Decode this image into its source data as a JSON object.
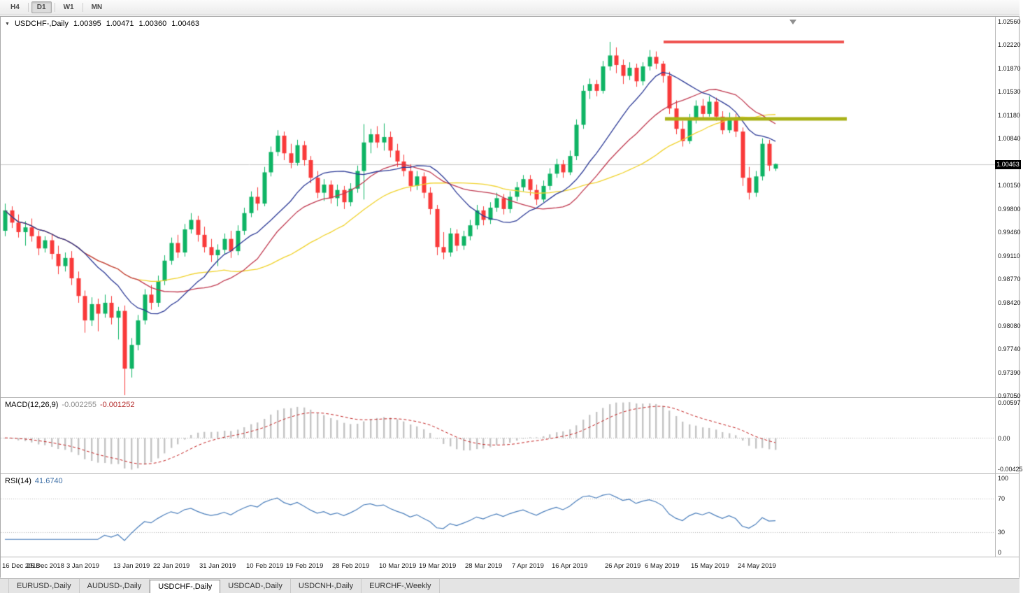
{
  "toolbar": {
    "timeframes": [
      {
        "label": "H4",
        "active": false
      },
      {
        "label": "D1",
        "active": true
      },
      {
        "label": "W1",
        "active": false
      },
      {
        "label": "MN",
        "active": false
      }
    ]
  },
  "chart": {
    "symbol_line": {
      "marker": "▼",
      "title": "USDCHF-,Daily",
      "open": "1.00395",
      "high": "1.00471",
      "low": "1.00360",
      "close": "1.00463"
    },
    "scale": {
      "pmax": 1.0263,
      "pmin": 0.9703
    },
    "price_axis": {
      "ticks": [
        {
          "label": "1.02560",
          "value": 1.0256
        },
        {
          "label": "1.02220",
          "value": 1.0222
        },
        {
          "label": "1.01870",
          "value": 1.0187
        },
        {
          "label": "1.01530",
          "value": 1.0153
        },
        {
          "label": "1.01180",
          "value": 1.0118
        },
        {
          "label": "1.00840",
          "value": 1.0084
        },
        {
          "label": "1.00150",
          "value": 1.0015
        },
        {
          "label": "0.99800",
          "value": 0.998
        },
        {
          "label": "0.99460",
          "value": 0.9946
        },
        {
          "label": "0.99110",
          "value": 0.9911
        },
        {
          "label": "0.98770",
          "value": 0.9877
        },
        {
          "label": "0.98420",
          "value": 0.9842
        },
        {
          "label": "0.98080",
          "value": 0.9808
        },
        {
          "label": "0.97740",
          "value": 0.9774
        },
        {
          "label": "0.97390",
          "value": 0.9739
        },
        {
          "label": "0.97050",
          "value": 0.9705
        }
      ],
      "current": {
        "label": "1.00463",
        "value": 1.00463
      }
    }
  },
  "colors": {
    "candle_up": "#0eb464",
    "candle_down": "#f93a3a",
    "current_price_line": "#c9c9c9",
    "price_tag_bg": "#000000",
    "price_tag_text": "#ffffff",
    "panel_border": "#b8b8b8"
  },
  "macd": {
    "label": "MACD(12,26,9)",
    "value_main": "-0.002255",
    "value_signal": "-0.001252",
    "axis_labels": [
      "0.00597",
      "0.00",
      "-0.00425"
    ]
  },
  "rsi": {
    "label": "RSI(14)",
    "value": "41.6740",
    "axis_labels": [
      "100",
      "70",
      "30",
      "0"
    ]
  },
  "date_axis": {
    "labels": [
      {
        "text": "16 Dec 2018",
        "bar": 0
      },
      {
        "text": "25 Dec 2018",
        "bar": 6
      },
      {
        "text": "3 Jan 2019",
        "bar": 12
      },
      {
        "text": "13 Jan 2019",
        "bar": 19
      },
      {
        "text": "22 Jan 2019",
        "bar": 25
      },
      {
        "text": "31 Jan 2019",
        "bar": 32
      },
      {
        "text": "10 Feb 2019",
        "bar": 39
      },
      {
        "text": "19 Feb 2019",
        "bar": 45
      },
      {
        "text": "28 Feb 2019",
        "bar": 52
      },
      {
        "text": "10 Mar 2019",
        "bar": 59
      },
      {
        "text": "19 Mar 2019",
        "bar": 65
      },
      {
        "text": "28 Mar 2019",
        "bar": 72
      },
      {
        "text": "7 Apr 2019",
        "bar": 79
      },
      {
        "text": "16 Apr 2019",
        "bar": 85
      },
      {
        "text": "26 Apr 2019",
        "bar": 93
      },
      {
        "text": "6 May 2019",
        "bar": 99
      },
      {
        "text": "15 May 2019",
        "bar": 106
      },
      {
        "text": "24 May 2019",
        "bar": 113
      }
    ]
  },
  "tabs": [
    {
      "label": "EURUSD-,Daily",
      "active": false
    },
    {
      "label": "AUDUSD-,Daily",
      "active": false
    },
    {
      "label": "USDCHF-,Daily",
      "active": true
    },
    {
      "label": "USDCAD-,Daily",
      "active": false
    },
    {
      "label": "USDCNH-,Daily",
      "active": false
    },
    {
      "label": "EURCHF-,Weekly",
      "active": false
    }
  ],
  "chart_data": {
    "type": "candlestick",
    "symbol": "USDCHF-",
    "timeframe": "Daily",
    "ylim": [
      0.9703,
      1.0263
    ],
    "open": [
      0.9948,
      0.9978,
      0.996,
      0.9946,
      0.9953,
      0.994,
      0.9922,
      0.9934,
      0.9914,
      0.9896,
      0.9908,
      0.9878,
      0.9852,
      0.9816,
      0.984,
      0.9826,
      0.9842,
      0.982,
      0.983,
      0.9745,
      0.978,
      0.9816,
      0.9854,
      0.9842,
      0.9874,
      0.9904,
      0.993,
      0.9916,
      0.995,
      0.9964,
      0.9942,
      0.9924,
      0.9912,
      0.992,
      0.9936,
      0.9918,
      0.9948,
      0.9974,
      0.9998,
      0.9988,
      1.0034,
      1.0064,
      1.0088,
      1.0062,
      1.0048,
      1.0074,
      1.0052,
      1.0026,
      1.0004,
      1.0016,
      0.9996,
      1.0008,
      0.999,
      1.001,
      1.0036,
      1.0078,
      1.009,
      1.0078,
      1.0086,
      1.0066,
      1.005,
      1.0036,
      1.0014,
      1.0028,
      1.0004,
      0.998,
      0.9924,
      0.9916,
      0.9944,
      0.9926,
      0.994,
      0.9956,
      0.9978,
      0.9964,
      0.9982,
      0.9996,
      0.998,
      0.9998,
      1.0012,
      1.0024,
      1.0008,
      0.9994,
      1.0014,
      1.0032,
      1.0046,
      1.0034,
      1.0058,
      1.0104,
      1.0154,
      1.0164,
      1.0154,
      1.019,
      1.0206,
      1.0192,
      1.0176,
      1.0188,
      1.0168,
      1.019,
      1.0204,
      1.0194,
      1.0176,
      1.0128,
      1.0098,
      1.008,
      1.0112,
      1.0132,
      1.012,
      1.0138,
      1.0116,
      1.0096,
      1.0114,
      1.0094,
      1.0026,
      1.0004,
      1.0028,
      1.0076,
      1.00395
    ],
    "high": [
      0.9988,
      0.9984,
      0.9972,
      0.9962,
      0.9966,
      0.9948,
      0.994,
      0.9944,
      0.9926,
      0.9916,
      0.9918,
      0.9888,
      0.986,
      0.985,
      0.9848,
      0.9854,
      0.9852,
      0.9836,
      0.9838,
      0.979,
      0.9824,
      0.9862,
      0.9868,
      0.9882,
      0.9912,
      0.9938,
      0.9942,
      0.9958,
      0.9974,
      0.997,
      0.9954,
      0.9936,
      0.9928,
      0.9944,
      0.9948,
      0.9956,
      0.9982,
      1.0006,
      1.0012,
      1.0042,
      1.0072,
      1.0096,
      1.0094,
      1.0076,
      1.0082,
      1.008,
      1.0058,
      1.0036,
      1.0024,
      1.0022,
      1.0016,
      1.0014,
      1.0018,
      1.0044,
      1.0105,
      1.0098,
      1.0102,
      1.0106,
      1.0094,
      1.0076,
      1.006,
      1.0046,
      1.0036,
      1.0034,
      1.0012,
      0.9986,
      0.9946,
      0.9952,
      0.995,
      0.9948,
      0.9964,
      0.9986,
      0.9984,
      0.999,
      1.0004,
      1.0002,
      1.0006,
      1.002,
      1.003,
      1.003,
      1.0016,
      1.0022,
      1.004,
      1.0054,
      1.0052,
      1.0066,
      1.0112,
      1.0162,
      1.0172,
      1.017,
      1.0198,
      1.0226,
      1.0218,
      1.02,
      1.0196,
      1.0194,
      1.0196,
      1.0214,
      1.0212,
      1.0198,
      1.0182,
      1.014,
      1.011,
      1.012,
      1.014,
      1.0142,
      1.0146,
      1.0144,
      1.0124,
      1.0122,
      1.012,
      1.01,
      1.0042,
      1.0036,
      1.0084,
      1.0082,
      1.00471
    ],
    "low": [
      0.994,
      0.9952,
      0.9938,
      0.9926,
      0.9932,
      0.9912,
      0.9916,
      0.9906,
      0.9884,
      0.9888,
      0.9868,
      0.9842,
      0.9798,
      0.9808,
      0.98,
      0.982,
      0.981,
      0.9788,
      0.9706,
      0.9732,
      0.9772,
      0.981,
      0.9832,
      0.9836,
      0.9868,
      0.9898,
      0.9908,
      0.991,
      0.9944,
      0.9932,
      0.9916,
      0.9902,
      0.9896,
      0.9914,
      0.9908,
      0.9912,
      0.9942,
      0.9968,
      0.9978,
      0.9984,
      1.0028,
      1.0058,
      1.0052,
      1.004,
      1.0044,
      1.0044,
      1.0018,
      0.9996,
      0.9992,
      0.9988,
      0.9984,
      0.998,
      0.9984,
      1.0004,
      0.9994,
      1.0062,
      1.007,
      1.0066,
      1.0056,
      1.0042,
      1.0028,
      1.0006,
      1.0008,
      0.9996,
      0.9972,
      0.9912,
      0.9906,
      0.991,
      0.9918,
      0.992,
      0.9934,
      0.995,
      0.9956,
      0.9958,
      0.9976,
      0.9972,
      0.9974,
      0.9992,
      1.0006,
      1.0,
      0.9986,
      0.999,
      1.0008,
      1.0026,
      1.0026,
      1.003,
      1.0052,
      1.0098,
      1.0142,
      1.0146,
      1.015,
      1.0184,
      1.018,
      1.0164,
      1.017,
      1.016,
      1.0162,
      1.0184,
      1.0186,
      1.0166,
      1.012,
      1.009,
      1.0072,
      1.0076,
      1.0106,
      1.0112,
      1.0116,
      1.011,
      1.009,
      1.0092,
      1.0086,
      1.0014,
      0.9994,
      0.9998,
      1.0022,
      1.0036,
      1.0036
    ],
    "close": [
      0.9978,
      0.996,
      0.9946,
      0.9953,
      0.994,
      0.9922,
      0.9934,
      0.9914,
      0.9896,
      0.9908,
      0.9878,
      0.9852,
      0.9816,
      0.984,
      0.9826,
      0.9842,
      0.982,
      0.983,
      0.9745,
      0.978,
      0.9816,
      0.9854,
      0.9842,
      0.9874,
      0.9904,
      0.993,
      0.9916,
      0.995,
      0.9964,
      0.9942,
      0.9924,
      0.9912,
      0.992,
      0.9936,
      0.9918,
      0.9948,
      0.9974,
      0.9998,
      0.9988,
      1.0034,
      1.0064,
      1.0088,
      1.0062,
      1.0048,
      1.0074,
      1.0052,
      1.0026,
      1.0004,
      1.0016,
      0.9996,
      1.0008,
      0.999,
      1.001,
      1.0036,
      1.0078,
      1.009,
      1.0078,
      1.0086,
      1.0066,
      1.005,
      1.0036,
      1.0014,
      1.0028,
      1.0004,
      0.998,
      0.9924,
      0.9916,
      0.9944,
      0.9926,
      0.994,
      0.9956,
      0.9978,
      0.9964,
      0.9982,
      0.9996,
      0.998,
      0.9998,
      1.0012,
      1.0024,
      1.0008,
      0.9994,
      1.0014,
      1.0032,
      1.0046,
      1.0034,
      1.0058,
      1.0104,
      1.0154,
      1.0164,
      1.0154,
      1.019,
      1.0206,
      1.0192,
      1.0176,
      1.0188,
      1.0168,
      1.019,
      1.0204,
      1.0194,
      1.0176,
      1.0128,
      1.0098,
      1.008,
      1.0112,
      1.0132,
      1.012,
      1.0138,
      1.0116,
      1.0096,
      1.0114,
      1.0094,
      1.0026,
      1.0004,
      1.0028,
      1.0076,
      1.0044,
      1.00463
    ],
    "overlays": [
      {
        "type": "sma",
        "period": 34,
        "color": "#f0d22c",
        "name": "ma-slow-yellow"
      },
      {
        "type": "sma",
        "period": 21,
        "color": "#c03a50",
        "name": "ma-medium-red"
      },
      {
        "type": "sma",
        "period": 13,
        "color": "#2c3a96",
        "name": "ma-fast-navy"
      }
    ],
    "horizontal_lines": [
      {
        "name": "resistance-line",
        "price": 1.0226,
        "x1": 948,
        "x2": 1206,
        "color": "#ef5350",
        "width": 4
      },
      {
        "name": "support-line",
        "price": 1.0113,
        "x1": 950,
        "x2": 1210,
        "color": "#a9b218",
        "width": 5
      }
    ],
    "indicators": [
      {
        "id": "macd",
        "type": "macd",
        "fast": 12,
        "slow": 26,
        "signal": 9,
        "current_main": -0.002255,
        "current_signal": -0.001252,
        "hist_color": "#c4c4c4",
        "signal_color": "#c22222"
      },
      {
        "id": "rsi",
        "type": "rsi",
        "period": 14,
        "current": 41.674,
        "levels": [
          70,
          30
        ],
        "color": "#4a7ebb"
      }
    ]
  }
}
